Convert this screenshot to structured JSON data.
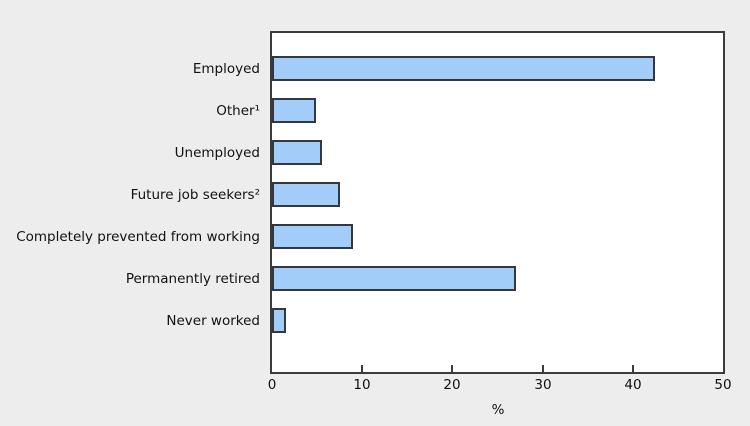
{
  "page": {
    "background_color": "#ededed"
  },
  "chart_data": {
    "type": "bar",
    "orientation": "horizontal",
    "title": "",
    "xlabel": "%",
    "ylabel": "",
    "categories": [
      "Employed",
      "Other¹",
      "Unemployed",
      "Future job seekers²",
      "Completely prevented from working",
      "Permanently retired",
      "Never worked"
    ],
    "values": [
      42.5,
      4.9,
      5.5,
      7.5,
      9,
      27,
      1.5
    ],
    "xlim": [
      0,
      50
    ],
    "xticks": [
      0,
      10,
      20,
      30,
      40,
      50
    ],
    "grid": false,
    "legend": "none",
    "bar_color": "#a2cdf9",
    "bar_border_color": "#333840",
    "axis_color": "#3b3b3b",
    "plot_background": "#ffffff",
    "page_background": "#ededed",
    "text_color": "#111111"
  }
}
